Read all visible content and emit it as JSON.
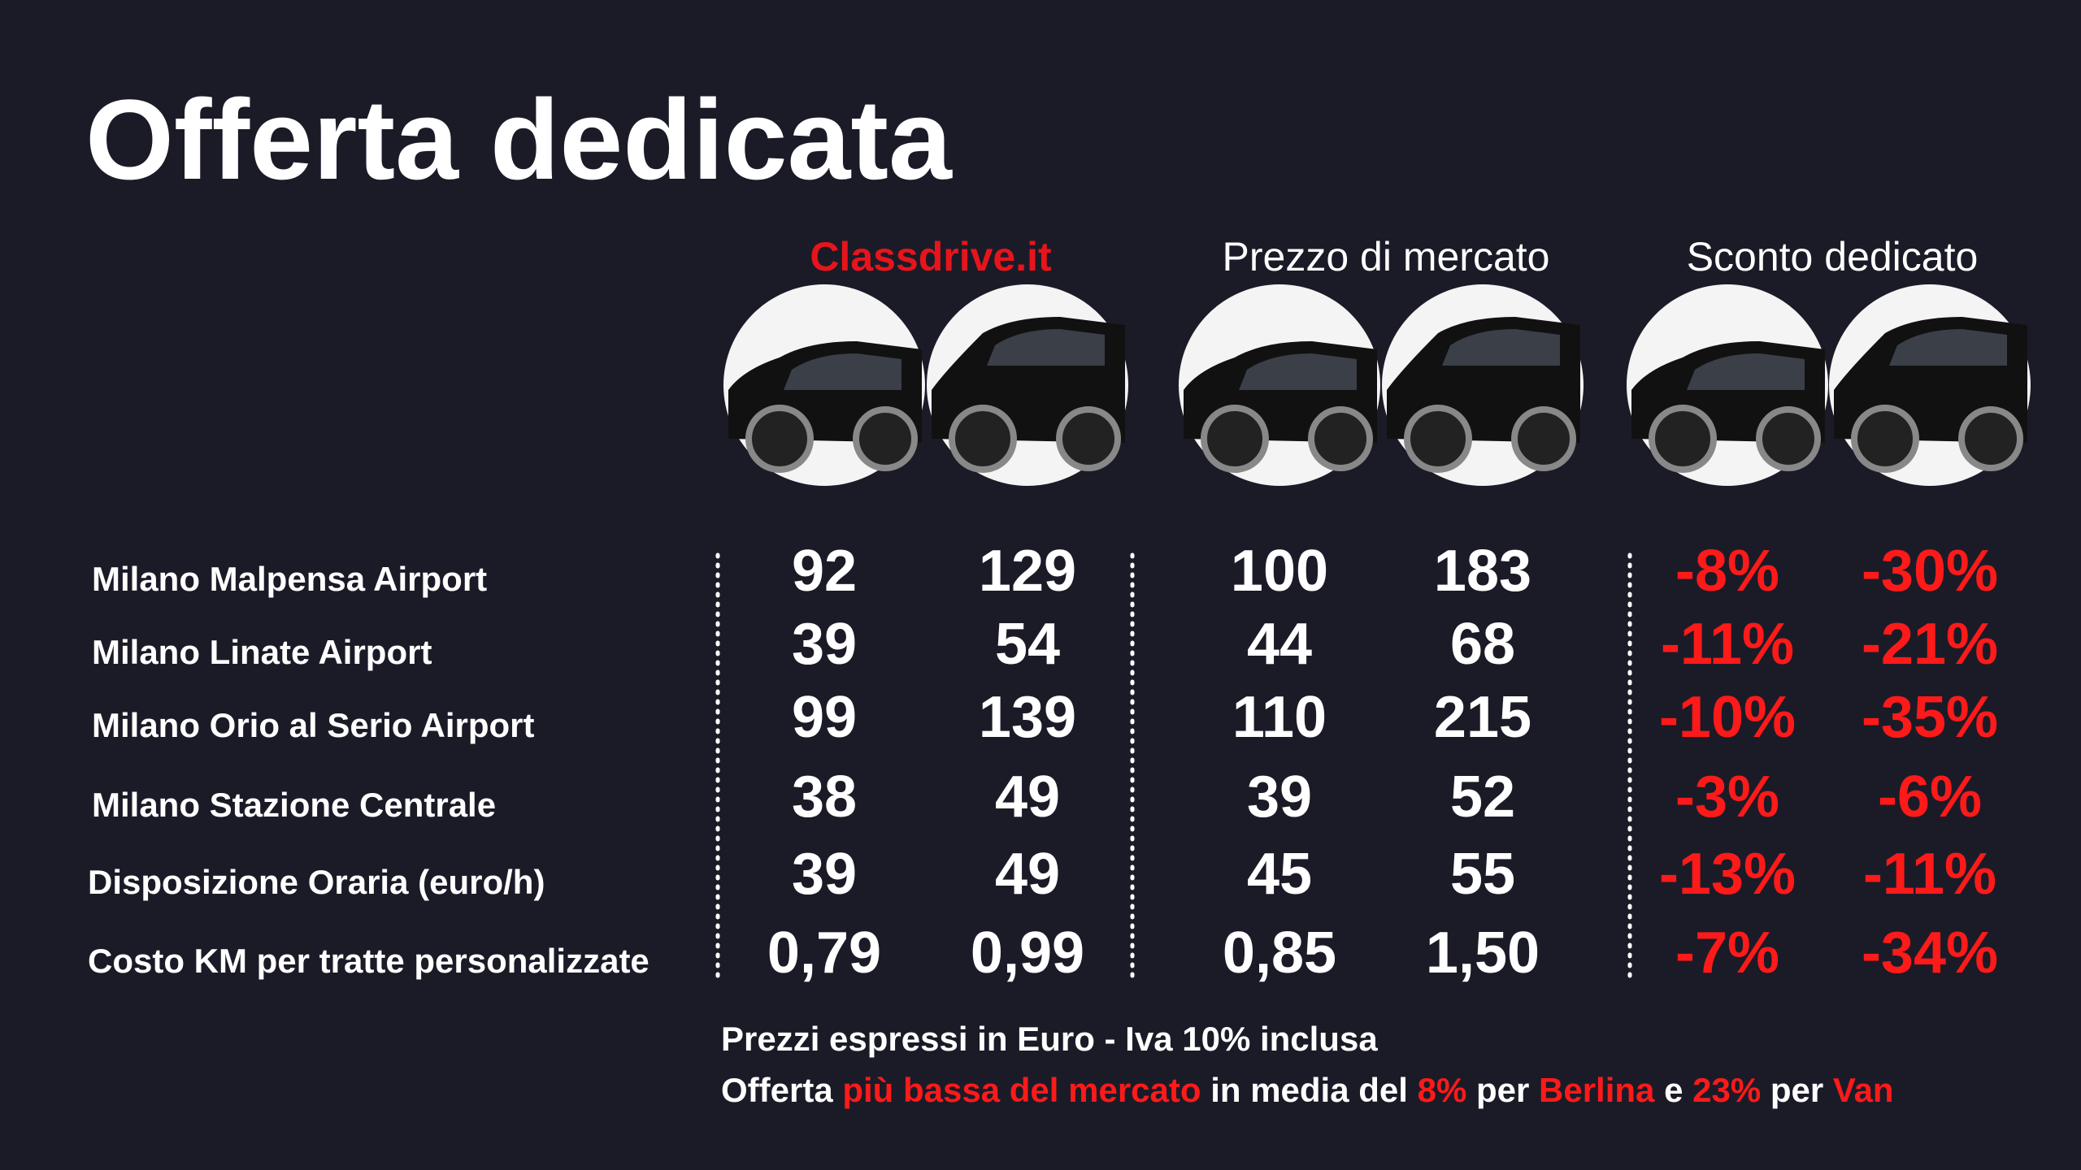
{
  "title": "Offerta dedicata",
  "columns": [
    "Classdrive.it",
    "Prezzo di mercato",
    "Sconto dedicato"
  ],
  "rows": [
    {
      "label": "Milano Malpensa Airport",
      "cells": [
        "92",
        "129",
        "100",
        "183",
        "-8%",
        "-30%"
      ]
    },
    {
      "label": "Milano Linate Airport",
      "cells": [
        "39",
        "54",
        "44",
        "68",
        "-11%",
        "-21%"
      ]
    },
    {
      "label": "Milano Orio al Serio Airport",
      "cells": [
        "99",
        "139",
        "110",
        "215",
        "-10%",
        "-35%"
      ]
    },
    {
      "label": "Milano Stazione Centrale",
      "cells": [
        "38",
        "49",
        "39",
        "52",
        "-3%",
        "-6%"
      ]
    },
    {
      "label": "Disposizione Oraria (euro/h)",
      "cells": [
        "39",
        "49",
        "45",
        "55",
        "-13%",
        "-11%"
      ]
    },
    {
      "label": "Costo KM per tratte personalizzate",
      "cells": [
        "0,79",
        "0,99",
        "0,85",
        "1,50",
        "-7%",
        "-34%"
      ]
    }
  ],
  "notes": {
    "line1": "Prezzi espressi in Euro - Iva 10% inclusa",
    "line2": [
      "Offerta ",
      "più bassa del mercato",
      " in media del ",
      "8%",
      " per ",
      "Berlina",
      " e ",
      "23%",
      " per ",
      "Van"
    ]
  }
}
